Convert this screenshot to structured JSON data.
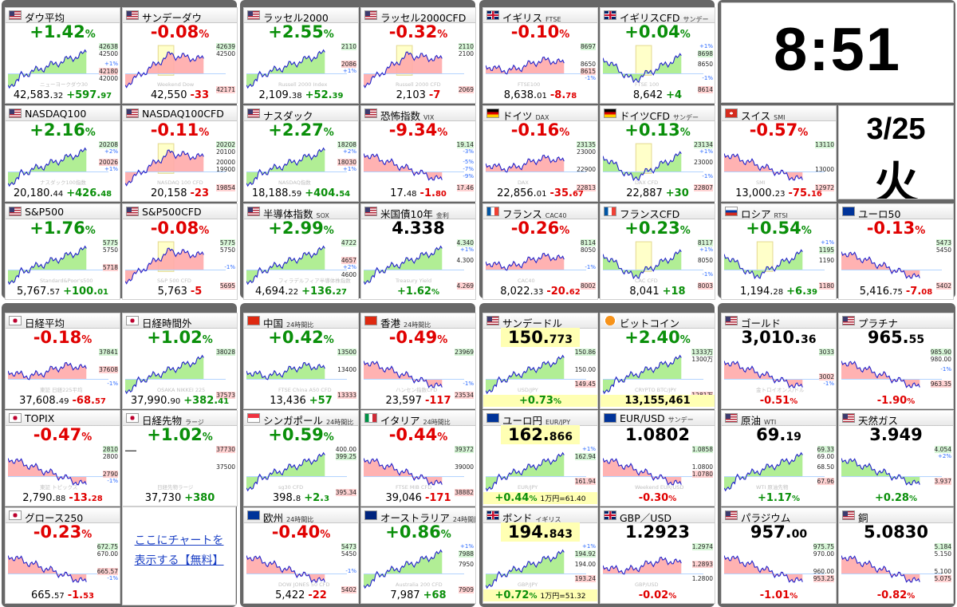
{
  "clock": {
    "time": "8:51",
    "date": "3/25",
    "dow": "火"
  },
  "promo": {
    "line1": "ここにチャートを",
    "line2": "表示する【無料】"
  },
  "colors": {
    "up": "#0a8f0a",
    "down": "#e00000",
    "area_green": "#a8ec8a",
    "area_red": "#ffaaaa",
    "line": "#2222cc",
    "highlight": "#ffffb3"
  },
  "tiles": [
    {
      "name": "ダウ平均",
      "sub": "",
      "flag": "us",
      "change": "+1.42",
      "unit": "%",
      "dir": "up",
      "price_int": "42,583.",
      "price_dec": "32",
      "diff_int": "+597.",
      "diff_dec": "97",
      "y": [
        "42638",
        "42500",
        "+1%",
        "42180",
        "42000"
      ],
      "hi": "42638",
      "lo": "42180",
      "trend": "up",
      "wm": "ニューヨークダウ30"
    },
    {
      "name": "サンデーダウ",
      "sub": "",
      "flag": "us",
      "change": "-0.08",
      "unit": "%",
      "dir": "dn",
      "price_int": "42,550",
      "price_dec": "",
      "diff_int": "-33",
      "diff_dec": "",
      "y": [
        "42639",
        "42500",
        "",
        "",
        ""
      ],
      "hi": "42639",
      "lo": "42171",
      "trend": "updn",
      "wm": "Weekend Dow"
    },
    {
      "name": "ラッセル2000",
      "sub": "",
      "flag": "us",
      "change": "+2.55",
      "unit": "%",
      "dir": "up",
      "price_int": "2,109.",
      "price_dec": "38",
      "diff_int": "+52.",
      "diff_dec": "39",
      "y": [
        "2110",
        "",
        "2086",
        "+1%",
        ""
      ],
      "hi": "2110",
      "lo": "2086",
      "trend": "up",
      "wm": "Russell 2000 Index"
    },
    {
      "name": "ラッセル2000CFD",
      "sub": "",
      "flag": "us",
      "change": "-0.32",
      "unit": "%",
      "dir": "dn",
      "price_int": "2,103",
      "price_dec": "",
      "diff_int": "-7",
      "diff_dec": "",
      "y": [
        "2110",
        "2100",
        "",
        "",
        ""
      ],
      "hi": "2110",
      "lo": "2069",
      "trend": "updn",
      "wm": "Russell 2000 CFD"
    },
    {
      "name": "イギリス",
      "sub": "FTSE",
      "flag": "uk",
      "change": "-0.10",
      "unit": "%",
      "dir": "dn",
      "price_int": "8,638.",
      "price_dec": "01",
      "diff_int": "-8.",
      "diff_dec": "78",
      "y": [
        "8697",
        "",
        "8650",
        "8615",
        "-1%"
      ],
      "hi": "8697",
      "lo": "8615",
      "trend": "flat",
      "wm": "FTSE100"
    },
    {
      "name": "イギリスCFD",
      "sub": "サンデー",
      "flag": "uk",
      "change": "+0.04",
      "unit": "%",
      "dir": "up",
      "price_int": "8,642",
      "price_dec": "",
      "diff_int": "+4",
      "diff_dec": "",
      "y": [
        "+1%",
        "8698",
        "8650",
        "",
        "-1%"
      ],
      "hi": "8698",
      "lo": "8614",
      "trend": "dnup",
      "wm": "FTSE 100"
    },
    {
      "name": "NASDAQ100",
      "sub": "",
      "flag": "us",
      "change": "+2.16",
      "unit": "%",
      "dir": "up",
      "price_int": "20,180.",
      "price_dec": "44",
      "diff_int": "+426.",
      "diff_dec": "48",
      "y": [
        "20208",
        "+2%",
        "20026",
        "+1%",
        ""
      ],
      "hi": "20208",
      "lo": "20026",
      "trend": "up",
      "wm": "ナスダック100指数"
    },
    {
      "name": "NASDAQ100CFD",
      "sub": "",
      "flag": "us",
      "change": "-0.11",
      "unit": "%",
      "dir": "dn",
      "price_int": "20,158",
      "price_dec": "",
      "diff_int": "-23",
      "diff_dec": "",
      "y": [
        "20202",
        "20100",
        "20000",
        "19900",
        ""
      ],
      "hi": "20202",
      "lo": "19854",
      "trend": "updn",
      "wm": "NASDAQ 100 CFD"
    },
    {
      "name": "ナスダック",
      "sub": "",
      "flag": "us",
      "change": "+2.27",
      "unit": "%",
      "dir": "up",
      "price_int": "18,188.",
      "price_dec": "59",
      "diff_int": "+404.",
      "diff_dec": "54",
      "y": [
        "18208",
        "+2%",
        "18030",
        "+1%",
        ""
      ],
      "hi": "18208",
      "lo": "18030",
      "trend": "up",
      "wm": "NASDAQ指数"
    },
    {
      "name": "恐怖指数",
      "sub": "VIX",
      "flag": "us",
      "change": "-9.34",
      "unit": "%",
      "dir": "dn",
      "price_int": "17.",
      "price_dec": "48",
      "diff_int": "-1.",
      "diff_dec": "80",
      "y": [
        "19.14",
        "-3%",
        "-5%",
        "-7%",
        "-9%"
      ],
      "hi": "19.14",
      "lo": "17.46",
      "trend": "down",
      "wm": ""
    },
    {
      "name": "ドイツ",
      "sub": "DAX",
      "flag": "de",
      "change": "-0.16",
      "unit": "%",
      "dir": "dn",
      "price_int": "22,856.",
      "price_dec": "01",
      "diff_int": "-35.",
      "diff_dec": "67",
      "y": [
        "23135",
        "23000",
        "",
        "22900",
        ""
      ],
      "hi": "23135",
      "lo": "22813",
      "trend": "flat",
      "wm": "DAX"
    },
    {
      "name": "ドイツCFD",
      "sub": "サンデー",
      "flag": "de",
      "change": "+0.13",
      "unit": "%",
      "dir": "up",
      "price_int": "22,887",
      "price_dec": "",
      "diff_int": "+30",
      "diff_dec": "",
      "y": [
        "23134",
        "+1%",
        "23000",
        "",
        "-1%"
      ],
      "hi": "23134",
      "lo": "22807",
      "trend": "dnup",
      "wm": "DAX CFD"
    },
    {
      "name": "S&P500",
      "sub": "",
      "flag": "us",
      "change": "+1.76",
      "unit": "%",
      "dir": "up",
      "price_int": "5,767.",
      "price_dec": "57",
      "diff_int": "+100.",
      "diff_dec": "01",
      "y": [
        "5775",
        "5750",
        "",
        "5718",
        ""
      ],
      "hi": "5775",
      "lo": "5718",
      "trend": "up",
      "wm": "Standard&Poor's500"
    },
    {
      "name": "S&P500CFD",
      "sub": "",
      "flag": "us",
      "change": "-0.08",
      "unit": "%",
      "dir": "dn",
      "price_int": "5,763",
      "price_dec": "",
      "diff_int": "-5",
      "diff_dec": "",
      "y": [
        "5775",
        "5750",
        "",
        "-1%",
        ""
      ],
      "hi": "5775",
      "lo": "5695",
      "trend": "updn",
      "wm": "S&P 500 CFD"
    },
    {
      "name": "半導体指数",
      "sub": "SOX",
      "flag": "us",
      "change": "+2.99",
      "unit": "%",
      "dir": "up",
      "price_int": "4,694.",
      "price_dec": "22",
      "diff_int": "+136.",
      "diff_dec": "27",
      "y": [
        "4722",
        "",
        "4657",
        "+2%",
        "4600"
      ],
      "hi": "4722",
      "lo": "4657",
      "trend": "up",
      "wm": "フィラデルフィア半導体株指数"
    },
    {
      "name": "米国債10年",
      "sub": "金利",
      "flag": "us",
      "big_int": "4.338",
      "big_dec": "",
      "dir": "up",
      "bottom": "+1.62",
      "y": [
        "4.340",
        "+1%",
        "4.300",
        "",
        ""
      ],
      "hi": "4.340",
      "lo": "4.269",
      "trend": "up",
      "wm": "Treasury Yield"
    },
    {
      "name": "フランス",
      "sub": "CAC40",
      "flag": "fr",
      "change": "-0.26",
      "unit": "%",
      "dir": "dn",
      "price_int": "8,022.",
      "price_dec": "33",
      "diff_int": "-20.",
      "diff_dec": "62",
      "y": [
        "8114",
        "8050",
        "",
        "-1%",
        ""
      ],
      "hi": "8114",
      "lo": "8002",
      "trend": "flat",
      "wm": "CAC40"
    },
    {
      "name": "フランスCFD",
      "sub": "",
      "flag": "fr",
      "change": "+0.23",
      "unit": "%",
      "dir": "up",
      "price_int": "8,041",
      "price_dec": "",
      "diff_int": "+18",
      "diff_dec": "",
      "y": [
        "8117",
        "+1%",
        "8050",
        "",
        "-1%"
      ],
      "hi": "8117",
      "lo": "8003",
      "trend": "dnup",
      "wm": "CAC CFD"
    },
    {
      "name": "日経平均",
      "sub": "",
      "flag": "jp",
      "change": "-0.18",
      "unit": "%",
      "dir": "dn",
      "price_int": "37,608.",
      "price_dec": "49",
      "diff_int": "-68.",
      "diff_dec": "57",
      "y": [
        "37841",
        "",
        "37608",
        "",
        "-1%"
      ],
      "hi": "37841",
      "lo": "37608",
      "trend": "flat",
      "wm": "東証 日経225平均"
    },
    {
      "name": "日経時間外",
      "sub": "",
      "flag": "jp",
      "change": "+1.02",
      "unit": "%",
      "dir": "up",
      "price_int": "37,990.",
      "price_dec": "90",
      "diff_int": "+382.",
      "diff_dec": "41",
      "y": [
        "38028",
        "",
        "",
        "",
        ""
      ],
      "hi": "38028",
      "lo": "37573",
      "trend": "up",
      "wm": "OSAKA NIKKEI 225"
    },
    {
      "name": "中国",
      "sub": "24時間比",
      "flag": "cn",
      "change": "+0.42",
      "unit": "%",
      "dir": "up",
      "price_int": "13,436",
      "price_dec": "",
      "diff_int": "+57",
      "diff_dec": "",
      "y": [
        "13500",
        "",
        "13400",
        "",
        ""
      ],
      "hi": "13500",
      "lo": "13333",
      "trend": "flat",
      "wm": "FTSE China A50 CFD"
    },
    {
      "name": "香港",
      "sub": "24時間比",
      "flag": "hk",
      "change": "-0.49",
      "unit": "%",
      "dir": "dn",
      "price_int": "23,597",
      "price_dec": "",
      "diff_int": "-117",
      "diff_dec": "",
      "y": [
        "23969",
        "",
        "",
        "",
        "-1%"
      ],
      "hi": "23969",
      "lo": "23534",
      "trend": "down",
      "wm": "ハンセン指数CFD"
    },
    {
      "name": "TOPIX",
      "sub": "",
      "flag": "jp",
      "change": "-0.47",
      "unit": "%",
      "dir": "dn",
      "price_int": "2,790.",
      "price_dec": "88",
      "diff_int": "-13.",
      "diff_dec": "28",
      "y": [
        "2810",
        "2800",
        "",
        "2790",
        "-1%"
      ],
      "hi": "2810",
      "lo": "2790",
      "trend": "down",
      "wm": "東証 トピックス"
    },
    {
      "name": "日経先物",
      "sub": "ラージ",
      "flag": "jp",
      "change": "+1.02",
      "unit": "%",
      "dir": "up",
      "price_int": "37,730",
      "price_dec": "",
      "diff_int": "+380",
      "diff_dec": "",
      "y": [
        "37730",
        "",
        "37500",
        "",
        ""
      ],
      "hi": "37730",
      "lo": "37730",
      "trend": "none",
      "wm": "日経先物ラージ"
    },
    {
      "name": "シンガポール",
      "sub": "24時間比",
      "flag": "sg",
      "change": "+0.59",
      "unit": "%",
      "dir": "up",
      "price_int": "398.",
      "price_dec": "8",
      "diff_int": "+2.",
      "diff_dec": "3",
      "y": [
        "400.00",
        "399.25",
        "",
        "",
        ""
      ],
      "hi": "399.25",
      "lo": "395.34",
      "trend": "up",
      "wm": "sg30 CFD"
    },
    {
      "name": "イタリア",
      "sub": "24時間比",
      "flag": "it",
      "change": "-0.44",
      "unit": "%",
      "dir": "dn",
      "price_int": "39,046",
      "price_dec": "",
      "diff_int": "-171",
      "diff_dec": "",
      "y": [
        "39372",
        "",
        "39000",
        "",
        ""
      ],
      "hi": "39372",
      "lo": "38882",
      "trend": "down",
      "wm": "FTSE MIB CFD"
    },
    {
      "name": "グロース250",
      "sub": "",
      "flag": "jp",
      "change": "-0.23",
      "unit": "%",
      "dir": "dn",
      "price_int": "665.",
      "price_dec": "57",
      "diff_int": "-1.",
      "diff_dec": "53",
      "y": [
        "672.75",
        "670.00",
        "",
        "665.57",
        "-1%"
      ],
      "hi": "672.75",
      "lo": "665.57",
      "trend": "down",
      "wm": ""
    },
    {
      "name": "欧州",
      "sub": "24時間比",
      "flag": "eu",
      "change": "-0.40",
      "unit": "%",
      "dir": "dn",
      "price_int": "5,422",
      "price_dec": "",
      "diff_int": "-22",
      "diff_dec": "",
      "y": [
        "5473",
        "5450",
        "",
        "-1%",
        ""
      ],
      "hi": "5473",
      "lo": "5402",
      "trend": "down",
      "wm": "DOW JONES 50 CFD"
    },
    {
      "name": "オーストラリア",
      "sub": "24時間比",
      "flag": "au",
      "change": "+0.86",
      "unit": "%",
      "dir": "up",
      "price_int": "7,987",
      "price_dec": "",
      "diff_int": "+68",
      "diff_dec": "",
      "y": [
        "+1%",
        "7988",
        "7950",
        "",
        ""
      ],
      "hi": "7988",
      "lo": "7909",
      "trend": "up",
      "wm": "Australia 200 CFD"
    }
  ],
  "right_tiles": [
    {
      "name": "スイス",
      "sub": "SMI",
      "flag": "ch",
      "change": "-0.57",
      "unit": "%",
      "dir": "dn",
      "price_int": "13,000.",
      "price_dec": "23",
      "diff_int": "-75.",
      "diff_dec": "16",
      "y": [
        "13110",
        "",
        "",
        "13000",
        ""
      ],
      "hi": "13110",
      "lo": "12972",
      "trend": "down",
      "wm": "SMI"
    },
    {
      "name": "ロシア",
      "sub": "RTSI",
      "flag": "ru",
      "change": "+0.54",
      "unit": "%",
      "dir": "up",
      "price_int": "1,194.",
      "price_dec": "28",
      "diff_int": "+6.",
      "diff_dec": "39",
      "y": [
        "+1%",
        "1195",
        "1190",
        "",
        ""
      ],
      "hi": "1195",
      "lo": "1180",
      "trend": "dnup",
      "wm": ""
    },
    {
      "name": "ユーロ50",
      "sub": "",
      "flag": "eu",
      "change": "-0.13",
      "unit": "%",
      "dir": "dn",
      "price_int": "5,416.",
      "price_dec": "75",
      "diff_int": "-7.",
      "diff_dec": "08",
      "y": [
        "5473",
        "5450",
        "",
        "",
        ""
      ],
      "hi": "5473",
      "lo": "5402",
      "trend": "down",
      "wm": ""
    }
  ],
  "fx": [
    {
      "name": "サンデードル",
      "sub": "",
      "flag": "us",
      "big_int": "150.",
      "big_dec": "773",
      "hl": true,
      "bottom": "+0.73",
      "bextra": "",
      "dir": "up",
      "y": [
        "150.86",
        "",
        "150.00",
        "",
        "149.45"
      ],
      "hi": "150.86",
      "lo": "149.45",
      "trend": "up",
      "wm": "USD/JPY"
    },
    {
      "name": "ビットコイン",
      "sub": "",
      "flag": "btc",
      "change": "+2.40",
      "unit": "%",
      "dir": "up",
      "bottom_plain": "13,155,461",
      "y": [
        "1333万",
        "1300万",
        "",
        "",
        ""
      ],
      "hi": "1333万",
      "lo": "1281万",
      "trend": "up",
      "wm": "CRYPTO BTC/JPY"
    },
    {
      "name": "ユーロ円",
      "sub": "EUR/JPY",
      "flag": "eu",
      "big_int": "162.",
      "big_dec": "866",
      "hl": true,
      "bottom": "+0.44",
      "bextra": "1万円=61.40",
      "dir": "up",
      "y": [
        "+1%",
        "162.94",
        "",
        "",
        "161.94"
      ],
      "hi": "162.94",
      "lo": "161.94",
      "trend": "up",
      "wm": "EUR/JPY"
    },
    {
      "name": "EUR/USD",
      "sub": "サンデー",
      "flag": "eu",
      "big_int": "1.0802",
      "big_dec": "",
      "hl": false,
      "bottom": "-0.30",
      "bextra": "",
      "dir": "dn",
      "y": [
        "1.0858",
        "",
        "1.0800",
        "1.0780",
        ""
      ],
      "hi": "1.0858",
      "lo": "1.0780",
      "trend": "down",
      "wm": "Weekend EUR/USD"
    },
    {
      "name": "ボンド",
      "sub": "イギリス",
      "flag": "uk",
      "big_int": "194.",
      "big_dec": "843",
      "hl": true,
      "bottom": "+0.72",
      "bextra": "1万円=51.32",
      "dir": "up",
      "y": [
        "+1%",
        "194.92",
        "194.00",
        "",
        "193.24"
      ],
      "hi": "194.92",
      "lo": "193.24",
      "trend": "up",
      "wm": "GBP/JPY"
    },
    {
      "name": "GBP／USD",
      "sub": "",
      "flag": "uk",
      "big_int": "1.2923",
      "big_dec": "",
      "hl": false,
      "bottom": "-0.02",
      "bextra": "",
      "dir": "dn",
      "y": [
        "1.2974",
        "",
        "1.2893",
        "",
        "1.2800"
      ],
      "hi": "1.2974",
      "lo": "1.2893",
      "trend": "flat",
      "wm": "GBP/USD"
    }
  ],
  "comm": [
    {
      "name": "ゴールド",
      "sub": "",
      "flag": "us",
      "big_int": "3,010.",
      "big_dec": "36",
      "bottom": "-0.51",
      "dir": "dn",
      "y": [
        "3033",
        "",
        "",
        "3002",
        "-1%"
      ],
      "hi": "3033",
      "lo": "3002",
      "trend": "down",
      "wm": "金トロイオンス/ドル"
    },
    {
      "name": "プラチナ",
      "sub": "",
      "flag": "us",
      "big_int": "965.",
      "big_dec": "55",
      "bottom": "-1.90",
      "dir": "dn",
      "y": [
        "985.90",
        "980.00",
        "-1%",
        "",
        "963.35"
      ],
      "hi": "985.90",
      "lo": "963.35",
      "trend": "down",
      "wm": ""
    },
    {
      "name": "原油",
      "sub": "WTI",
      "flag": "us",
      "big_int": "69.",
      "big_dec": "19",
      "bottom": "+1.17",
      "dir": "up",
      "y": [
        "69.33",
        "69.00",
        "68.50",
        "",
        "67.96"
      ],
      "hi": "69.33",
      "lo": "67.96",
      "trend": "up",
      "wm": "WTI 原油先物"
    },
    {
      "name": "天然ガス",
      "sub": "",
      "flag": "us",
      "big_int": "3.949",
      "big_dec": "",
      "bottom": "+0.28",
      "dir": "up",
      "y": [
        "4.054",
        "+2%",
        "",
        "",
        "3.937"
      ],
      "hi": "4.054",
      "lo": "3.937",
      "trend": "down",
      "wm": ""
    },
    {
      "name": "パラジウム",
      "sub": "",
      "flag": "us",
      "big_int": "957.",
      "big_dec": "00",
      "bottom": "-1.01",
      "dir": "dn",
      "y": [
        "975.75",
        "970.00",
        "",
        "960.00",
        "953.25"
      ],
      "hi": "975.75",
      "lo": "953.25",
      "trend": "down",
      "wm": ""
    },
    {
      "name": "銅",
      "sub": "",
      "flag": "us",
      "big_int": "5.0830",
      "big_dec": "",
      "bottom": "-0.82",
      "dir": "dn",
      "y": [
        "5.184",
        "5.150",
        "",
        "5.100",
        "5.075"
      ],
      "hi": "5.184",
      "lo": "5.075",
      "trend": "down",
      "wm": ""
    }
  ]
}
